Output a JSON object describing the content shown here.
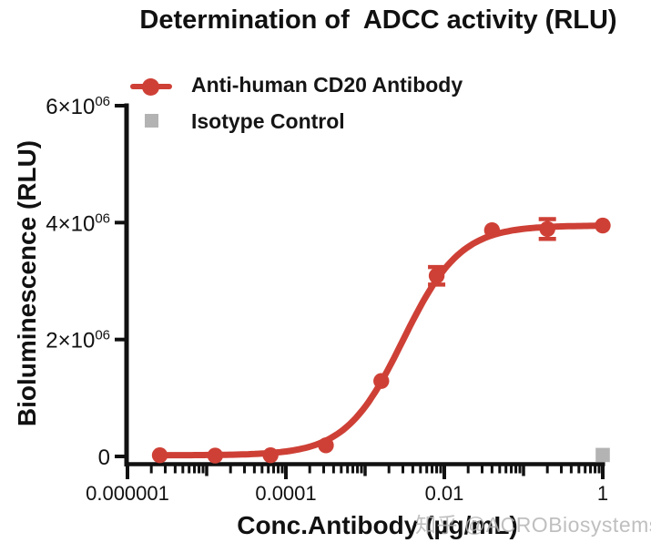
{
  "watermark": {
    "text": "知乎 @ACROBiosystems"
  },
  "chart_data": {
    "type": "line",
    "title": "Determination of  ADCC activity (RLU)",
    "xlabel": "Conc.Antibody (µg/mL)",
    "ylabel": "Bioluminescence (RLU)",
    "x_scale": "log",
    "xlim": [
      1e-06,
      1
    ],
    "ylim": [
      0,
      6000000
    ],
    "grid": false,
    "legend_position": "top-left",
    "axis_color": "#111111",
    "x_major_ticks": [
      {
        "value": 1e-06,
        "label": "0.000001"
      },
      {
        "value": 0.0001,
        "label": "0.0001"
      },
      {
        "value": 0.01,
        "label": "0.01"
      },
      {
        "value": 1,
        "label": "1"
      }
    ],
    "y_ticks": [
      {
        "value": 0,
        "label": "0"
      },
      {
        "value": 2000000,
        "label": "2×10^06"
      },
      {
        "value": 4000000,
        "label": "4×10^06"
      },
      {
        "value": 6000000,
        "label": "6×10^06"
      }
    ],
    "series": [
      {
        "name": "Anti-human CD20 Antibody",
        "color": "#ce4036",
        "marker": "circle",
        "x": [
          2.56e-06,
          1.28e-05,
          6.4e-05,
          0.00032,
          0.0016,
          0.008,
          0.04,
          0.2,
          1
        ],
        "y": [
          20000,
          15000,
          20000,
          190000,
          1290000,
          3090000,
          3870000,
          3890000,
          3950000
        ],
        "yerr": [
          0,
          0,
          0,
          0,
          0,
          150000,
          0,
          170000,
          0
        ],
        "fit": {
          "type": "4PL",
          "bottom": 20000,
          "top": 3950000,
          "ec50": 0.003,
          "hill": 1.2
        }
      },
      {
        "name": "Isotype Control",
        "color": "#b3b3b3",
        "marker": "square",
        "x": [
          1
        ],
        "y": [
          25000
        ],
        "yerr": [
          0
        ]
      }
    ]
  }
}
